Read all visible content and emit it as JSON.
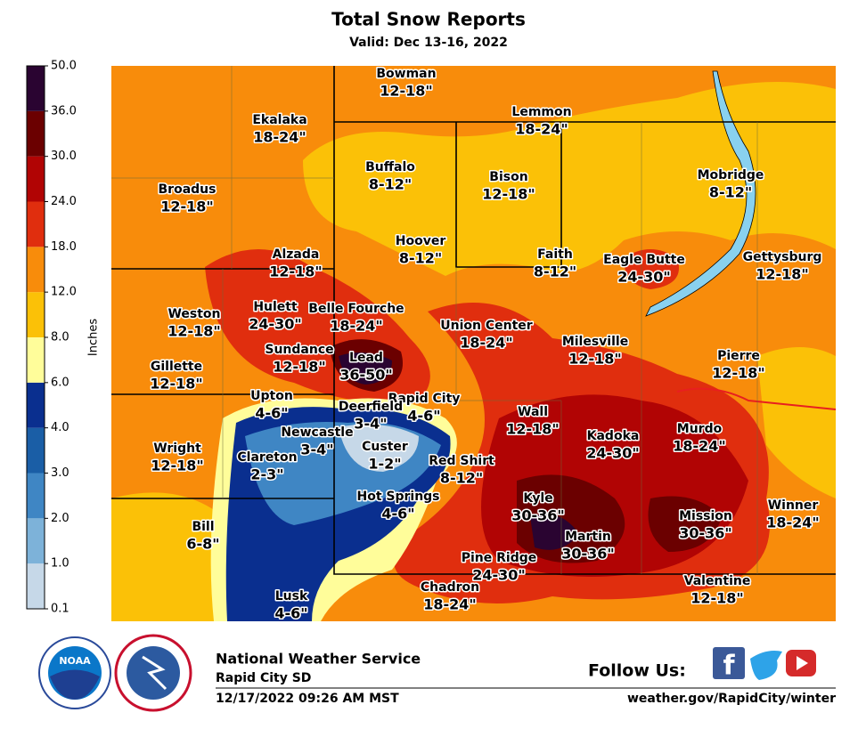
{
  "header": {
    "title": "Total Snow Reports",
    "subtitle": "Valid: Dec 13-16, 2022"
  },
  "colorbar": {
    "label": "Inches",
    "ticks": [
      0.1,
      {
        "value": 1,
        "label": "1.0"
      },
      {
        "value": 2,
        "label": "2.0"
      },
      {
        "value": 3,
        "label": "3.0"
      },
      {
        "value": 4,
        "label": "4.0"
      },
      {
        "value": 6,
        "label": "6.0"
      },
      {
        "value": 8,
        "label": "8.0"
      },
      {
        "value": 12,
        "label": "12.0"
      },
      {
        "value": 18,
        "label": "18.0"
      },
      {
        "value": 24,
        "label": "24.0"
      },
      {
        "value": 30,
        "label": "30.0"
      },
      {
        "value": 36,
        "label": "36.0"
      },
      {
        "value": 50,
        "label": "50.0"
      }
    ],
    "colors": [
      "#c6d8e8",
      "#7db2d9",
      "#3f86c4",
      "#1a5ea6",
      "#0a2f8f",
      "#fffd9a",
      "#fbc107",
      "#f88c0b",
      "#e02e0e",
      "#b10404",
      "#6b0000",
      "#2a0431"
    ]
  },
  "places": [
    {
      "name": "Bowman",
      "range": "12-18\""
    },
    {
      "name": "Ekalaka",
      "range": "18-24\""
    },
    {
      "name": "Lemmon",
      "range": "18-24\""
    },
    {
      "name": "Buffalo",
      "range": "8-12\""
    },
    {
      "name": "Bison",
      "range": "12-18\""
    },
    {
      "name": "Mobridge",
      "range": "8-12\""
    },
    {
      "name": "Broadus",
      "range": "12-18\""
    },
    {
      "name": "Hoover",
      "range": "8-12\""
    },
    {
      "name": "Faith",
      "range": "8-12\""
    },
    {
      "name": "Eagle Butte",
      "range": "24-30\""
    },
    {
      "name": "Gettysburg",
      "range": "12-18\""
    },
    {
      "name": "Alzada",
      "range": "12-18\""
    },
    {
      "name": "Weston",
      "range": "12-18\""
    },
    {
      "name": "Hulett",
      "range": "24-30\""
    },
    {
      "name": "Belle Fourche",
      "range": "18-24\""
    },
    {
      "name": "Union Center",
      "range": "18-24\""
    },
    {
      "name": "Milesville",
      "range": "12-18\""
    },
    {
      "name": "Pierre",
      "range": "12-18\""
    },
    {
      "name": "Gillette",
      "range": "12-18\""
    },
    {
      "name": "Sundance",
      "range": "12-18\""
    },
    {
      "name": "Lead",
      "range": "36-50\""
    },
    {
      "name": "Rapid City",
      "range": "4-6\""
    },
    {
      "name": "Upton",
      "range": "4-6\""
    },
    {
      "name": "Deerfield",
      "range": "3-4\""
    },
    {
      "name": "Wall",
      "range": "12-18\""
    },
    {
      "name": "Kadoka",
      "range": "24-30\""
    },
    {
      "name": "Murdo",
      "range": "18-24\""
    },
    {
      "name": "Newcastle",
      "range": "3-4\""
    },
    {
      "name": "Custer",
      "range": "1-2\""
    },
    {
      "name": "Wright",
      "range": "12-18\""
    },
    {
      "name": "Clareton",
      "range": "2-3\""
    },
    {
      "name": "Red Shirt",
      "range": "8-12\""
    },
    {
      "name": "Hot Springs",
      "range": "4-6\""
    },
    {
      "name": "Kyle",
      "range": "30-36\""
    },
    {
      "name": "Mission",
      "range": "30-36\""
    },
    {
      "name": "Winner",
      "range": "18-24\""
    },
    {
      "name": "Bill",
      "range": "6-8\""
    },
    {
      "name": "Martin",
      "range": "30-36\""
    },
    {
      "name": "Pine Ridge",
      "range": "24-30\""
    },
    {
      "name": "Chadron",
      "range": "18-24\""
    },
    {
      "name": "Valentine",
      "range": "12-18\""
    },
    {
      "name": "Lusk",
      "range": "4-6\""
    }
  ],
  "footer": {
    "agency": "National Weather Service",
    "office": "Rapid City SD",
    "timestamp": "12/17/2022 09:26 AM MST",
    "follow": "Follow Us:",
    "url": "weather.gov/RapidCity/winter",
    "noaa": "NOAA"
  }
}
